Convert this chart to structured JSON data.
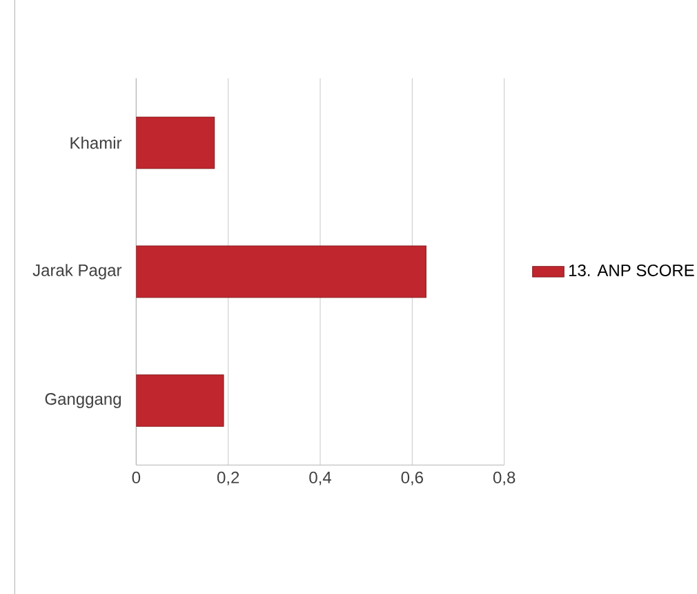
{
  "chart_data": {
    "type": "bar",
    "orientation": "horizontal",
    "categories": [
      "Khamir",
      "Jarak Pagar",
      "Ganggang"
    ],
    "series": [
      {
        "name": "13. ANP SCORE",
        "color": "#c0262d",
        "values": [
          0.17,
          0.63,
          0.19
        ]
      }
    ],
    "xlim": [
      0,
      0.8
    ],
    "xticks": [
      0,
      {
        "value": 0.2,
        "label": "0,2"
      },
      {
        "value": 0.4,
        "label": "0,4"
      },
      {
        "value": 0.6,
        "label": "0,6"
      },
      {
        "value": 0.8,
        "label": "0,8"
      }
    ],
    "grid": "x",
    "legend": "right"
  }
}
